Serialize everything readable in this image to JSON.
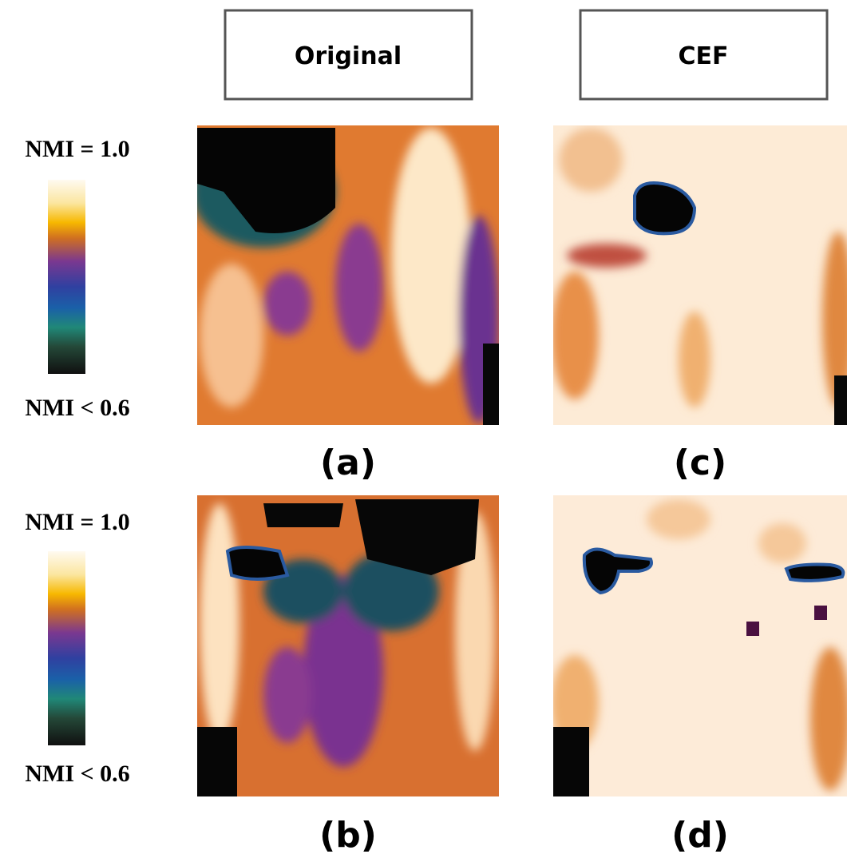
{
  "columns": [
    {
      "header": "Original"
    },
    {
      "header": "CEF"
    }
  ],
  "colorbars": [
    {
      "top_label": "NMI = 1.0",
      "bottom_label": "NMI < 0.6"
    },
    {
      "top_label": "NMI = 1.0",
      "bottom_label": "NMI < 0.6"
    }
  ],
  "panels": [
    {
      "label": "(a)"
    },
    {
      "label": "(b)"
    },
    {
      "label": "(c)"
    },
    {
      "label": "(d)"
    }
  ]
}
